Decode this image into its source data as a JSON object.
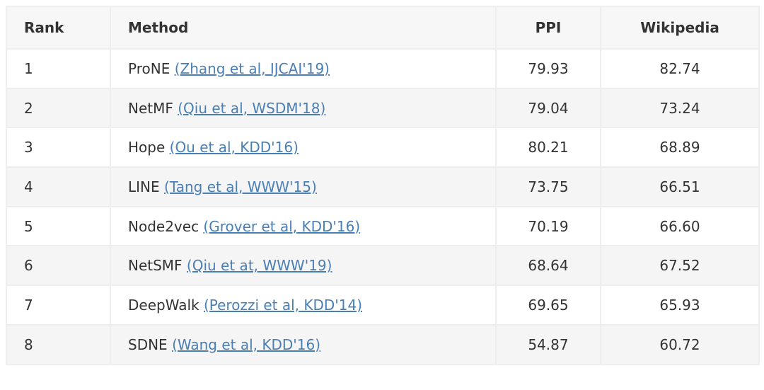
{
  "table": {
    "columns": [
      "Rank",
      "Method",
      "PPI",
      "Wikipedia"
    ],
    "rows": [
      {
        "rank": "1",
        "method": "ProNE",
        "citation": "(Zhang et al, IJCAI'19)",
        "ppi": "79.93",
        "wikipedia": "82.74"
      },
      {
        "rank": "2",
        "method": "NetMF",
        "citation": "(Qiu et al, WSDM'18)",
        "ppi": "79.04",
        "wikipedia": "73.24"
      },
      {
        "rank": "3",
        "method": "Hope",
        "citation": "(Ou et al, KDD'16)",
        "ppi": "80.21",
        "wikipedia": "68.89"
      },
      {
        "rank": "4",
        "method": "LINE",
        "citation": "(Tang et al, WWW'15)",
        "ppi": "73.75",
        "wikipedia": "66.51"
      },
      {
        "rank": "5",
        "method": "Node2vec",
        "citation": "(Grover et al, KDD'16)",
        "ppi": "70.19",
        "wikipedia": "66.60"
      },
      {
        "rank": "6",
        "method": "NetSMF",
        "citation": "(Qiu et at, WWW'19)",
        "ppi": "68.64",
        "wikipedia": "67.52"
      },
      {
        "rank": "7",
        "method": "DeepWalk",
        "citation": "(Perozzi et al, KDD'14)",
        "ppi": "69.65",
        "wikipedia": "65.93"
      },
      {
        "rank": "8",
        "method": "SDNE",
        "citation": "(Wang et al, KDD'16)",
        "ppi": "54.87",
        "wikipedia": "60.72"
      }
    ]
  }
}
